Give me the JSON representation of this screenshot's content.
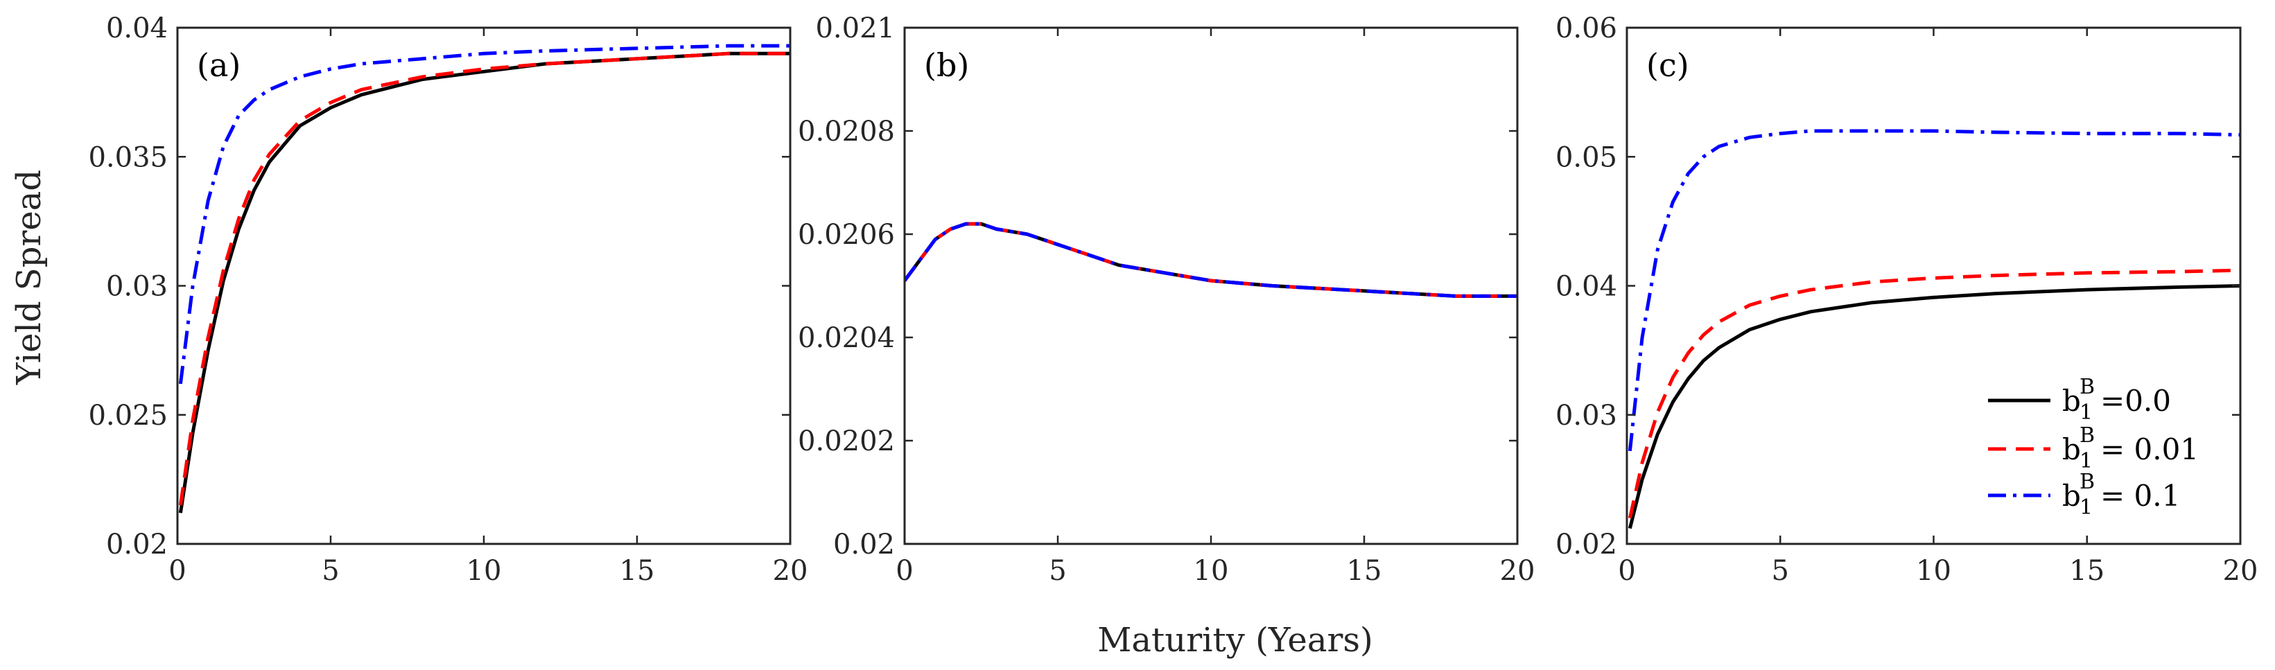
{
  "figure": {
    "ylabel": "Yield Spread",
    "xlabel": "Maturity (Years)",
    "legend": {
      "placement": "lower-right of panel (c)",
      "entries": [
        {
          "base": "b",
          "sub": "1",
          "sup": "B",
          "text": "=0.0"
        },
        {
          "base": "b",
          "sub": "1",
          "sup": "B",
          "text": "= 0.01"
        },
        {
          "base": "b",
          "sub": "1",
          "sup": "B",
          "text": "= 0.1"
        }
      ]
    }
  },
  "series_styles": [
    {
      "color": "#000000",
      "dash": "solid"
    },
    {
      "color": "#ff0000",
      "dash": "dashed"
    },
    {
      "color": "#0000ff",
      "dash": "dash-dot"
    }
  ],
  "chart_data": [
    {
      "type": "line",
      "panel_label": "(a)",
      "xlim": [
        0,
        20
      ],
      "ylim": [
        0.02,
        0.04
      ],
      "xticks": [
        "0",
        "5",
        "10",
        "15",
        "20"
      ],
      "yticks": [
        "0.02",
        "0.025",
        "0.03",
        "0.035",
        "0.04"
      ],
      "x": [
        0.1,
        0.5,
        1,
        1.5,
        2,
        2.5,
        3,
        4,
        5,
        6,
        8,
        10,
        12,
        15,
        18,
        20
      ],
      "series": [
        {
          "name": "b1B=0.0",
          "values": [
            0.0212,
            0.0243,
            0.0275,
            0.0302,
            0.0322,
            0.0337,
            0.0348,
            0.0362,
            0.0369,
            0.0374,
            0.038,
            0.0383,
            0.0386,
            0.0388,
            0.039,
            0.039
          ]
        },
        {
          "name": "b1B=0.01",
          "values": [
            0.0215,
            0.0248,
            0.028,
            0.0306,
            0.0326,
            0.0341,
            0.0351,
            0.0364,
            0.0371,
            0.0376,
            0.0381,
            0.0384,
            0.0386,
            0.0388,
            0.039,
            0.039
          ]
        },
        {
          "name": "b1B=0.1",
          "values": [
            0.0262,
            0.03,
            0.0333,
            0.0354,
            0.0366,
            0.0372,
            0.0376,
            0.0381,
            0.0384,
            0.0386,
            0.0388,
            0.039,
            0.0391,
            0.0392,
            0.0393,
            0.0393
          ]
        }
      ]
    },
    {
      "type": "line",
      "panel_label": "(b)",
      "xlim": [
        0,
        20
      ],
      "ylim": [
        0.02,
        0.021
      ],
      "xticks": [
        "0",
        "5",
        "10",
        "15",
        "20"
      ],
      "yticks": [
        "0.02",
        "0.0202",
        "0.0204",
        "0.0206",
        "0.0208",
        "0.021"
      ],
      "x": [
        0,
        0.5,
        1,
        1.5,
        2,
        2.5,
        3,
        4,
        5,
        6,
        7,
        8,
        10,
        12,
        15,
        18,
        20
      ],
      "series": [
        {
          "name": "b1B=0.0",
          "values": [
            0.02051,
            0.02055,
            0.02059,
            0.02061,
            0.02062,
            0.02062,
            0.02061,
            0.0206,
            0.02058,
            0.02056,
            0.02054,
            0.02053,
            0.02051,
            0.0205,
            0.02049,
            0.02048,
            0.02048
          ]
        },
        {
          "name": "b1B=0.01",
          "values": [
            0.02051,
            0.02055,
            0.02059,
            0.02061,
            0.02062,
            0.02062,
            0.02061,
            0.0206,
            0.02058,
            0.02056,
            0.02054,
            0.02053,
            0.02051,
            0.0205,
            0.02049,
            0.02048,
            0.02048
          ]
        },
        {
          "name": "b1B=0.1",
          "values": [
            0.02051,
            0.02055,
            0.02059,
            0.02061,
            0.02062,
            0.02062,
            0.02061,
            0.0206,
            0.02058,
            0.02056,
            0.02054,
            0.02053,
            0.02051,
            0.0205,
            0.02049,
            0.02048,
            0.02048
          ]
        }
      ]
    },
    {
      "type": "line",
      "panel_label": "(c)",
      "xlim": [
        0,
        20
      ],
      "ylim": [
        0.02,
        0.06
      ],
      "xticks": [
        "0",
        "5",
        "10",
        "15",
        "20"
      ],
      "yticks": [
        "0.02",
        "0.03",
        "0.04",
        "0.05",
        "0.06"
      ],
      "x": [
        0.1,
        0.5,
        1,
        1.5,
        2,
        2.5,
        3,
        4,
        5,
        6,
        8,
        10,
        12,
        15,
        18,
        20
      ],
      "series": [
        {
          "name": "b1B=0.0",
          "values": [
            0.0212,
            0.025,
            0.0285,
            0.031,
            0.0328,
            0.0342,
            0.0352,
            0.0366,
            0.0374,
            0.038,
            0.0387,
            0.0391,
            0.0394,
            0.0397,
            0.0399,
            0.04
          ]
        },
        {
          "name": "b1B=0.01",
          "values": [
            0.022,
            0.0263,
            0.0302,
            0.0329,
            0.0348,
            0.0362,
            0.0372,
            0.0385,
            0.0392,
            0.0397,
            0.0403,
            0.0406,
            0.0408,
            0.041,
            0.0411,
            0.0412
          ]
        },
        {
          "name": "b1B=0.1",
          "values": [
            0.0272,
            0.036,
            0.0428,
            0.0465,
            0.0487,
            0.05,
            0.0508,
            0.0515,
            0.0518,
            0.052,
            0.052,
            0.052,
            0.0519,
            0.0518,
            0.0518,
            0.0517
          ]
        }
      ]
    }
  ]
}
